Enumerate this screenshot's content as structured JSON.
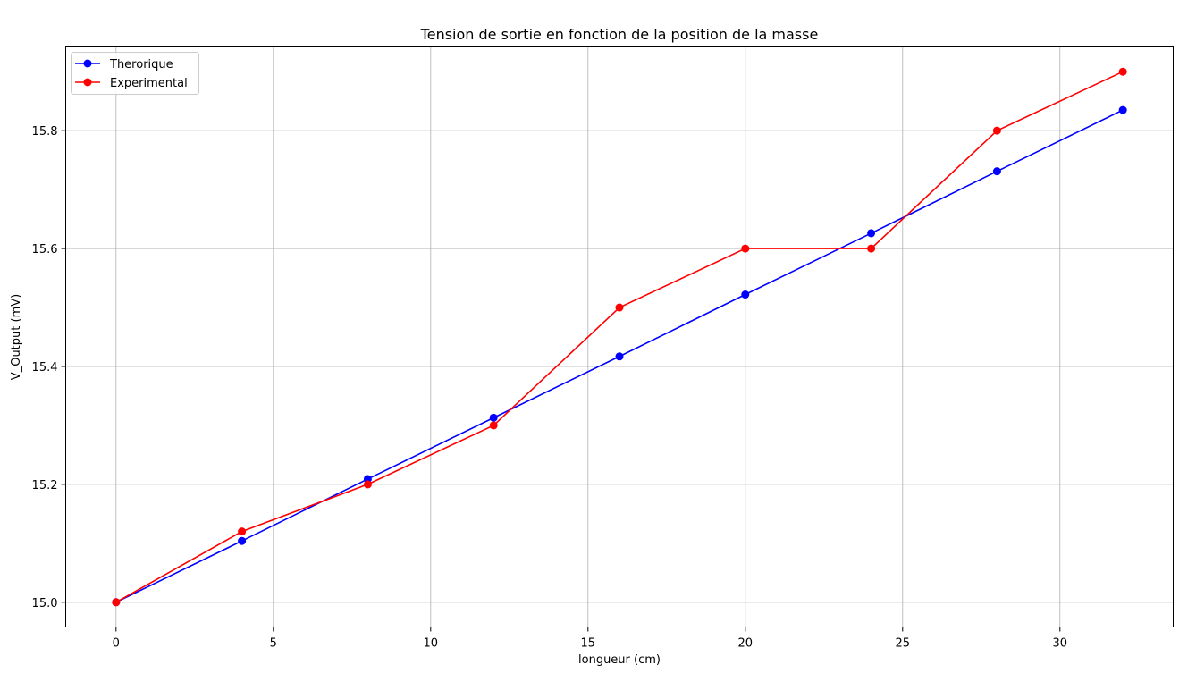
{
  "chart_data": {
    "type": "line",
    "title": "Tension de sortie en fonction de la position de la masse",
    "xlabel": "longueur (cm)",
    "ylabel": "V_Output (mV)",
    "xlim": [
      -1.6,
      33.6
    ],
    "ylim": [
      14.958,
      15.942
    ],
    "xticks": [
      0,
      5,
      10,
      15,
      20,
      25,
      30
    ],
    "yticks": [
      15.0,
      15.2,
      15.4,
      15.6,
      15.8
    ],
    "xtick_labels": [
      "0",
      "5",
      "10",
      "15",
      "20",
      "25",
      "30"
    ],
    "ytick_labels": [
      "15.0",
      "15.2",
      "15.4",
      "15.6",
      "15.8"
    ],
    "grid": true,
    "legend_position": "upper-left",
    "x": [
      0,
      4,
      8,
      12,
      16,
      20,
      24,
      28,
      32
    ],
    "series": [
      {
        "name": "Therorique",
        "color": "#0000ff",
        "marker": "circle",
        "values": [
          15.0,
          15.104,
          15.209,
          15.313,
          15.417,
          15.522,
          15.626,
          15.731,
          15.835
        ]
      },
      {
        "name": "Experimental",
        "color": "#ff0000",
        "marker": "circle",
        "values": [
          15.0,
          15.12,
          15.2,
          15.3,
          15.5,
          15.6,
          15.6,
          15.8,
          15.9
        ]
      }
    ]
  }
}
